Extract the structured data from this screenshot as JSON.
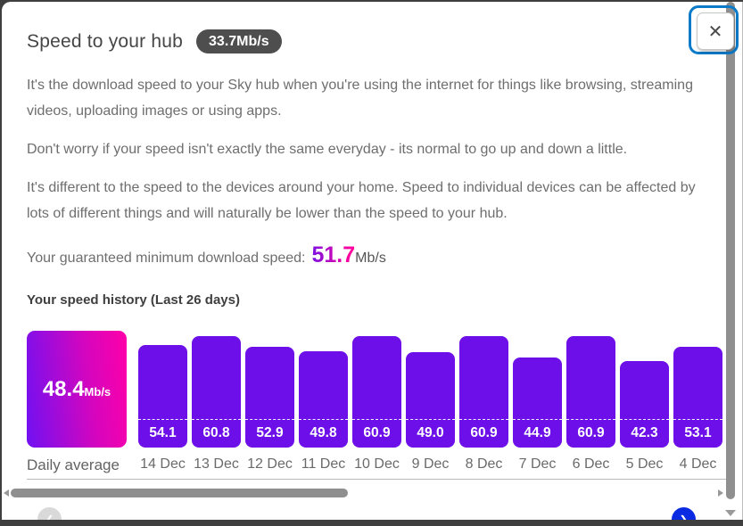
{
  "dialog": {
    "title": "Speed to your hub",
    "speed_badge": "33.7Mb/s",
    "close_icon": "✕",
    "paragraphs": [
      "It's the download speed to your Sky hub when you're using the internet for things like browsing, streaming videos, uploading images or using apps.",
      "Don't worry if your speed isn't exactly the same everyday - its normal to go up and down a little.",
      "It's different to the speed to the devices around your home. Speed to individual devices can be affected by lots of different things and will naturally be lower than the speed to your hub."
    ],
    "guaranteed_label": "Your guaranteed minimum download speed:",
    "guaranteed_value": "51.7",
    "guaranteed_unit": "Mb/s",
    "history_heading": "Your speed history (Last 26 days)"
  },
  "chart": {
    "average": {
      "value": "48.4",
      "unit": "Mb/s",
      "label": "Daily average"
    },
    "bars": [
      {
        "date": "14 Dec",
        "value": "54.1"
      },
      {
        "date": "13 Dec",
        "value": "60.8"
      },
      {
        "date": "12 Dec",
        "value": "52.9"
      },
      {
        "date": "11 Dec",
        "value": "49.8"
      },
      {
        "date": "10 Dec",
        "value": "60.9"
      },
      {
        "date": "9 Dec",
        "value": "49.0"
      },
      {
        "date": "8 Dec",
        "value": "60.9"
      },
      {
        "date": "7 Dec",
        "value": "44.9"
      },
      {
        "date": "6 Dec",
        "value": "60.9"
      },
      {
        "date": "5 Dec",
        "value": "42.3"
      },
      {
        "date": "4 Dec",
        "value": "53.1"
      }
    ],
    "partial_bar_visible": true
  },
  "chart_data": {
    "type": "bar",
    "title": "Your speed history (Last 26 days)",
    "unit": "Mb/s",
    "categories": [
      "Daily average",
      "14 Dec",
      "13 Dec",
      "12 Dec",
      "11 Dec",
      "10 Dec",
      "9 Dec",
      "8 Dec",
      "7 Dec",
      "6 Dec",
      "5 Dec",
      "4 Dec"
    ],
    "values": [
      48.4,
      54.1,
      60.8,
      52.9,
      49.8,
      60.9,
      49.0,
      60.9,
      44.9,
      60.9,
      42.3,
      53.1
    ],
    "annotations": [
      "First column is the daily-average gradient tile (48.4Mb/s)",
      "White dashed line drawn across bars above each value label",
      "Guaranteed minimum download speed: 51.7Mb/s",
      "Chart scrolls horizontally; 11 of 26 days visible plus a clipped partial bar"
    ],
    "legend": "none",
    "grid": false
  },
  "nav": {
    "prev_icon": "❮",
    "next_icon": "❯"
  },
  "colors": {
    "bar_purple": "#6C0FE8",
    "tile_gradient_start": "#7011F2",
    "tile_gradient_end": "#FF00A8",
    "guaranteed_gradient_start": "#7D11E0",
    "guaranteed_gradient_end": "#FF009C",
    "badge_bg": "#4E4E4E",
    "focus_ring_blue": "#0B7AC8",
    "next_button_blue": "#0A2BE1",
    "scrollbar_grey": "#8F8F8F",
    "backdrop_dark": "#3F3F3F"
  }
}
